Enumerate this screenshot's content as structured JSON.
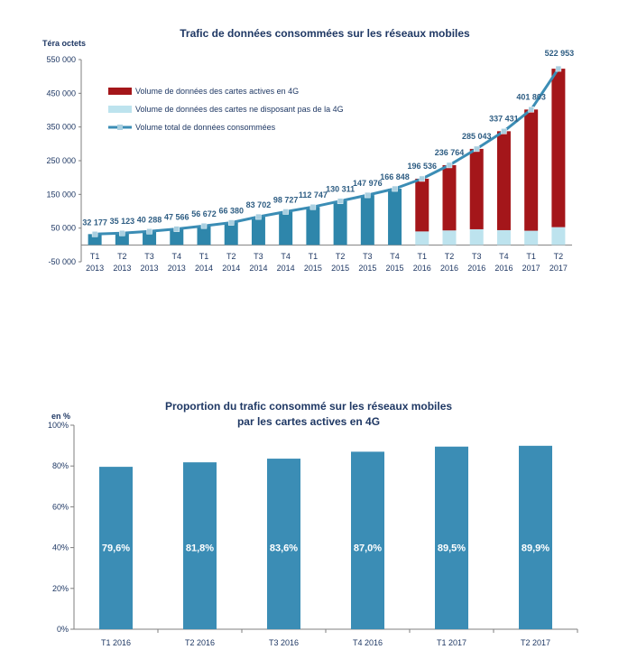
{
  "chart_data": [
    {
      "type": "bar",
      "title": "Trafic de données consommées sur les réseaux mobiles",
      "unit_label": "Téra octets",
      "y_ticks": [
        "550 000",
        "450 000",
        "350 000",
        "250 000",
        "150 000",
        "50 000",
        "-50 000"
      ],
      "ylim": [
        -50000,
        550000
      ],
      "grid": false,
      "legend_position": "top-left",
      "categories": [
        [
          "T1",
          "2013"
        ],
        [
          "T2",
          "2013"
        ],
        [
          "T3",
          "2013"
        ],
        [
          "T4",
          "2013"
        ],
        [
          "T1",
          "2014"
        ],
        [
          "T2",
          "2014"
        ],
        [
          "T3",
          "2014"
        ],
        [
          "T4",
          "2014"
        ],
        [
          "T1",
          "2015"
        ],
        [
          "T2",
          "2015"
        ],
        [
          "T3",
          "2015"
        ],
        [
          "T4",
          "2015"
        ],
        [
          "T1",
          "2016"
        ],
        [
          "T2",
          "2016"
        ],
        [
          "T3",
          "2016"
        ],
        [
          "T4",
          "2016"
        ],
        [
          "T1",
          "2017"
        ],
        [
          "T2",
          "2017"
        ]
      ],
      "series": [
        {
          "name": "Volume de données des cartes actives en 4G",
          "type": "bar",
          "color": "#a4161a",
          "values": [
            null,
            null,
            null,
            null,
            null,
            null,
            null,
            null,
            null,
            null,
            null,
            null,
            156443,
            193673,
            238496,
            293565,
            359614,
            470136
          ]
        },
        {
          "name": "Volume de données des cartes ne disposant pas de la 4G",
          "type": "bar",
          "color": "#bde3ee",
          "values": [
            null,
            null,
            null,
            null,
            null,
            null,
            null,
            null,
            null,
            null,
            null,
            null,
            40093,
            43091,
            46547,
            43866,
            42189,
            52817
          ]
        },
        {
          "name": "Volume total de données consommées",
          "type": "line",
          "color": "#3b8db5",
          "values": [
            32177,
            35123,
            40288,
            47566,
            56672,
            66380,
            83702,
            98727,
            112747,
            130311,
            147976,
            166848,
            196536,
            236764,
            285043,
            337431,
            401803,
            522953
          ],
          "labels": [
            "32 177",
            "35 123",
            "40 288",
            "47 566",
            "56 672",
            "66 380",
            "83 702",
            "98 727",
            "112 747",
            "130 311",
            "147 976",
            "166 848",
            "196 536",
            "236 764",
            "285 043",
            "337 431",
            "401 803",
            "522 953"
          ]
        }
      ],
      "bar_color_total": "#2e86ab"
    },
    {
      "type": "bar",
      "title": "Proportion du trafic consommé sur les réseaux mobiles",
      "subtitle": "par les cartes actives en 4G",
      "unit_label": "en %",
      "y_ticks": [
        "100%",
        "80%",
        "60%",
        "40%",
        "20%",
        "0%"
      ],
      "ylim": [
        0,
        100
      ],
      "grid": false,
      "categories": [
        "T1 2016",
        "T2 2016",
        "T3 2016",
        "T4 2016",
        "T1 2017",
        "T2 2017"
      ],
      "values": [
        79.6,
        81.8,
        83.6,
        87.0,
        89.5,
        89.9
      ],
      "labels": [
        "79,6%",
        "81,8%",
        "83,6%",
        "87,0%",
        "89,5%",
        "89,9%"
      ],
      "color": "#3b8db5"
    }
  ]
}
